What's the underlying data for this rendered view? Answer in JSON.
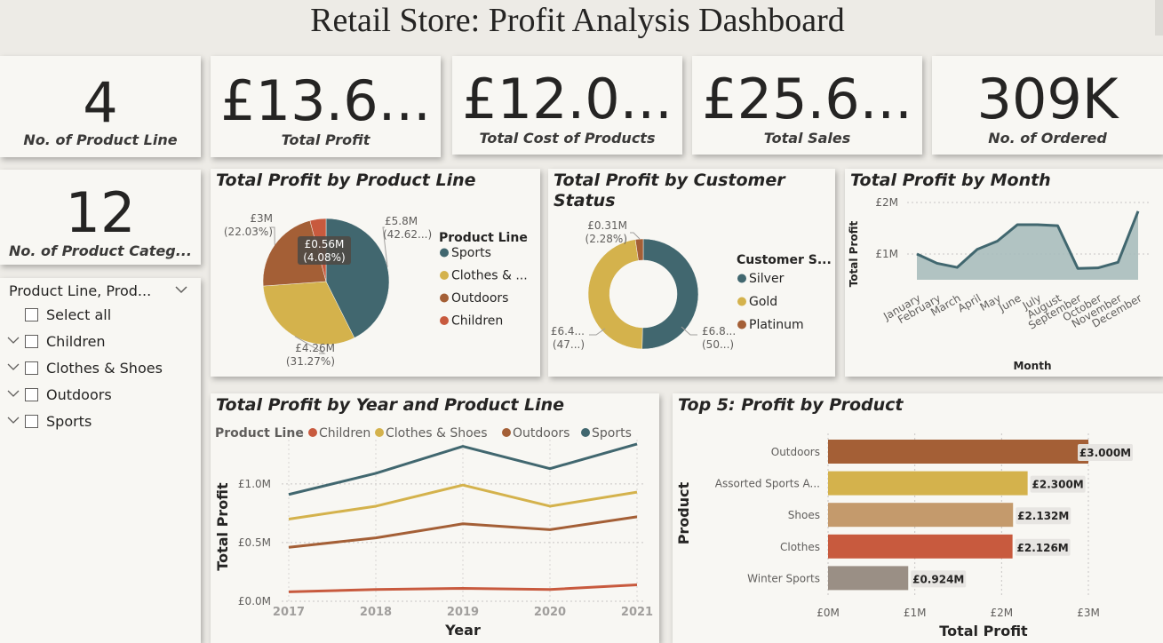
{
  "title": "Retail Store: Profit Analysis Dashboard",
  "colors": {
    "sports": "#41676f",
    "clothes": "#d4b24c",
    "outdoors": "#a45f36",
    "children": "#c85a3e",
    "silver": "#41676f",
    "gold": "#d4b24c",
    "platinum": "#a45f36",
    "month_area": "#a9bcbc",
    "month_line": "#41676f"
  },
  "kpis": [
    {
      "value": "4",
      "label": "No. of Product Line"
    },
    {
      "value": "£13.6...",
      "label": "Total Profit"
    },
    {
      "value": "£12.0...",
      "label": "Total Cost of Products"
    },
    {
      "value": "£25.6...",
      "label": "Total Sales"
    },
    {
      "value": "309K",
      "label": "No. of Ordered"
    },
    {
      "value": "12",
      "label": "No. of Product Categ..."
    }
  ],
  "slicer": {
    "header": "Product Line, Prod...",
    "items": [
      {
        "label": "Select all",
        "expandable": false
      },
      {
        "label": "Children",
        "expandable": true
      },
      {
        "label": "Clothes & Shoes",
        "expandable": true
      },
      {
        "label": "Outdoors",
        "expandable": true
      },
      {
        "label": "Sports",
        "expandable": true
      }
    ]
  },
  "chart_data": [
    {
      "id": "pie",
      "type": "pie",
      "title": "Total Profit by Product Line",
      "legend_title": "Product Line",
      "legend_labels": [
        "Sports",
        "Clothes & ...",
        "Outdoors",
        "Children"
      ],
      "slices": [
        {
          "name": "Sports",
          "value": 5.8,
          "pct": 42.62,
          "label": "£5.8M",
          "pct_label": "(42.62...)"
        },
        {
          "name": "Clothes & Shoes",
          "value": 4.26,
          "pct": 31.27,
          "label": "£4.26M",
          "pct_label": "(31.27%)"
        },
        {
          "name": "Outdoors",
          "value": 3.0,
          "pct": 22.03,
          "label": "£3M",
          "pct_label": "(22.03%)"
        },
        {
          "name": "Children",
          "value": 0.56,
          "pct": 4.08,
          "label": "£0.56M",
          "pct_label": "(4.08%)"
        }
      ]
    },
    {
      "id": "donut",
      "type": "pie",
      "title": "Total Profit by Customer Status",
      "legend_title": "Customer S...",
      "legend_labels": [
        "Silver",
        "Gold",
        "Platinum"
      ],
      "slices": [
        {
          "name": "Silver",
          "value": 6.8,
          "pct": 50,
          "label": "£6.8...",
          "pct_label": "(50...)"
        },
        {
          "name": "Gold",
          "value": 6.4,
          "pct": 47,
          "label": "£6.4...",
          "pct_label": "(47...)"
        },
        {
          "name": "Platinum",
          "value": 0.31,
          "pct": 2.28,
          "label": "£0.31M",
          "pct_label": "(2.28%)"
        }
      ]
    },
    {
      "id": "month",
      "type": "area",
      "title": "Total Profit by Month",
      "xlabel": "Month",
      "ylabel": "Total Profit",
      "y_ticks": [
        "£1M",
        "£2M"
      ],
      "ylim": [
        0.5,
        2.0
      ],
      "categories": [
        "January",
        "February",
        "March",
        "April",
        "May",
        "June",
        "July",
        "August",
        "September",
        "October",
        "November",
        "December"
      ],
      "values": [
        1.0,
        0.82,
        0.74,
        1.09,
        1.25,
        1.57,
        1.57,
        1.55,
        0.72,
        0.73,
        0.84,
        1.83
      ]
    },
    {
      "id": "year",
      "type": "line",
      "title": "Total Profit by Year and Product Line",
      "legend_title": "Product Line",
      "xlabel": "Year",
      "ylabel": "Total Profit",
      "y_ticks": [
        "£0.0M",
        "£0.5M",
        "£1.0M"
      ],
      "ylim": [
        0,
        1.4
      ],
      "categories": [
        "2017",
        "2018",
        "2019",
        "2020",
        "2021"
      ],
      "series": [
        {
          "name": "Children",
          "values": [
            0.08,
            0.1,
            0.11,
            0.1,
            0.14
          ]
        },
        {
          "name": "Clothes & Shoes",
          "values": [
            0.7,
            0.81,
            0.99,
            0.81,
            0.93
          ]
        },
        {
          "name": "Outdoors",
          "values": [
            0.46,
            0.54,
            0.66,
            0.61,
            0.72
          ]
        },
        {
          "name": "Sports",
          "values": [
            0.91,
            1.09,
            1.32,
            1.13,
            1.34
          ]
        }
      ]
    },
    {
      "id": "top5",
      "type": "bar",
      "title": "Top 5: Profit by Product",
      "xlabel": "Total Profit",
      "ylabel": "Product",
      "x_ticks": [
        "£0M",
        "£1M",
        "£2M",
        "£3M"
      ],
      "xlim": [
        0,
        3
      ],
      "categories": [
        "Outdoors",
        "Assorted Sports A...",
        "Shoes",
        "Clothes",
        "Winter Sports"
      ],
      "values": [
        3.0,
        2.3,
        2.132,
        2.126,
        0.924
      ],
      "labels": [
        "£3.000M",
        "£2.300M",
        "£2.132M",
        "£2.126M",
        "£0.924M"
      ],
      "bar_colors": [
        "#a45f36",
        "#d4b24c",
        "#c49a6c",
        "#c85a3e",
        "#9a8f85"
      ]
    }
  ]
}
